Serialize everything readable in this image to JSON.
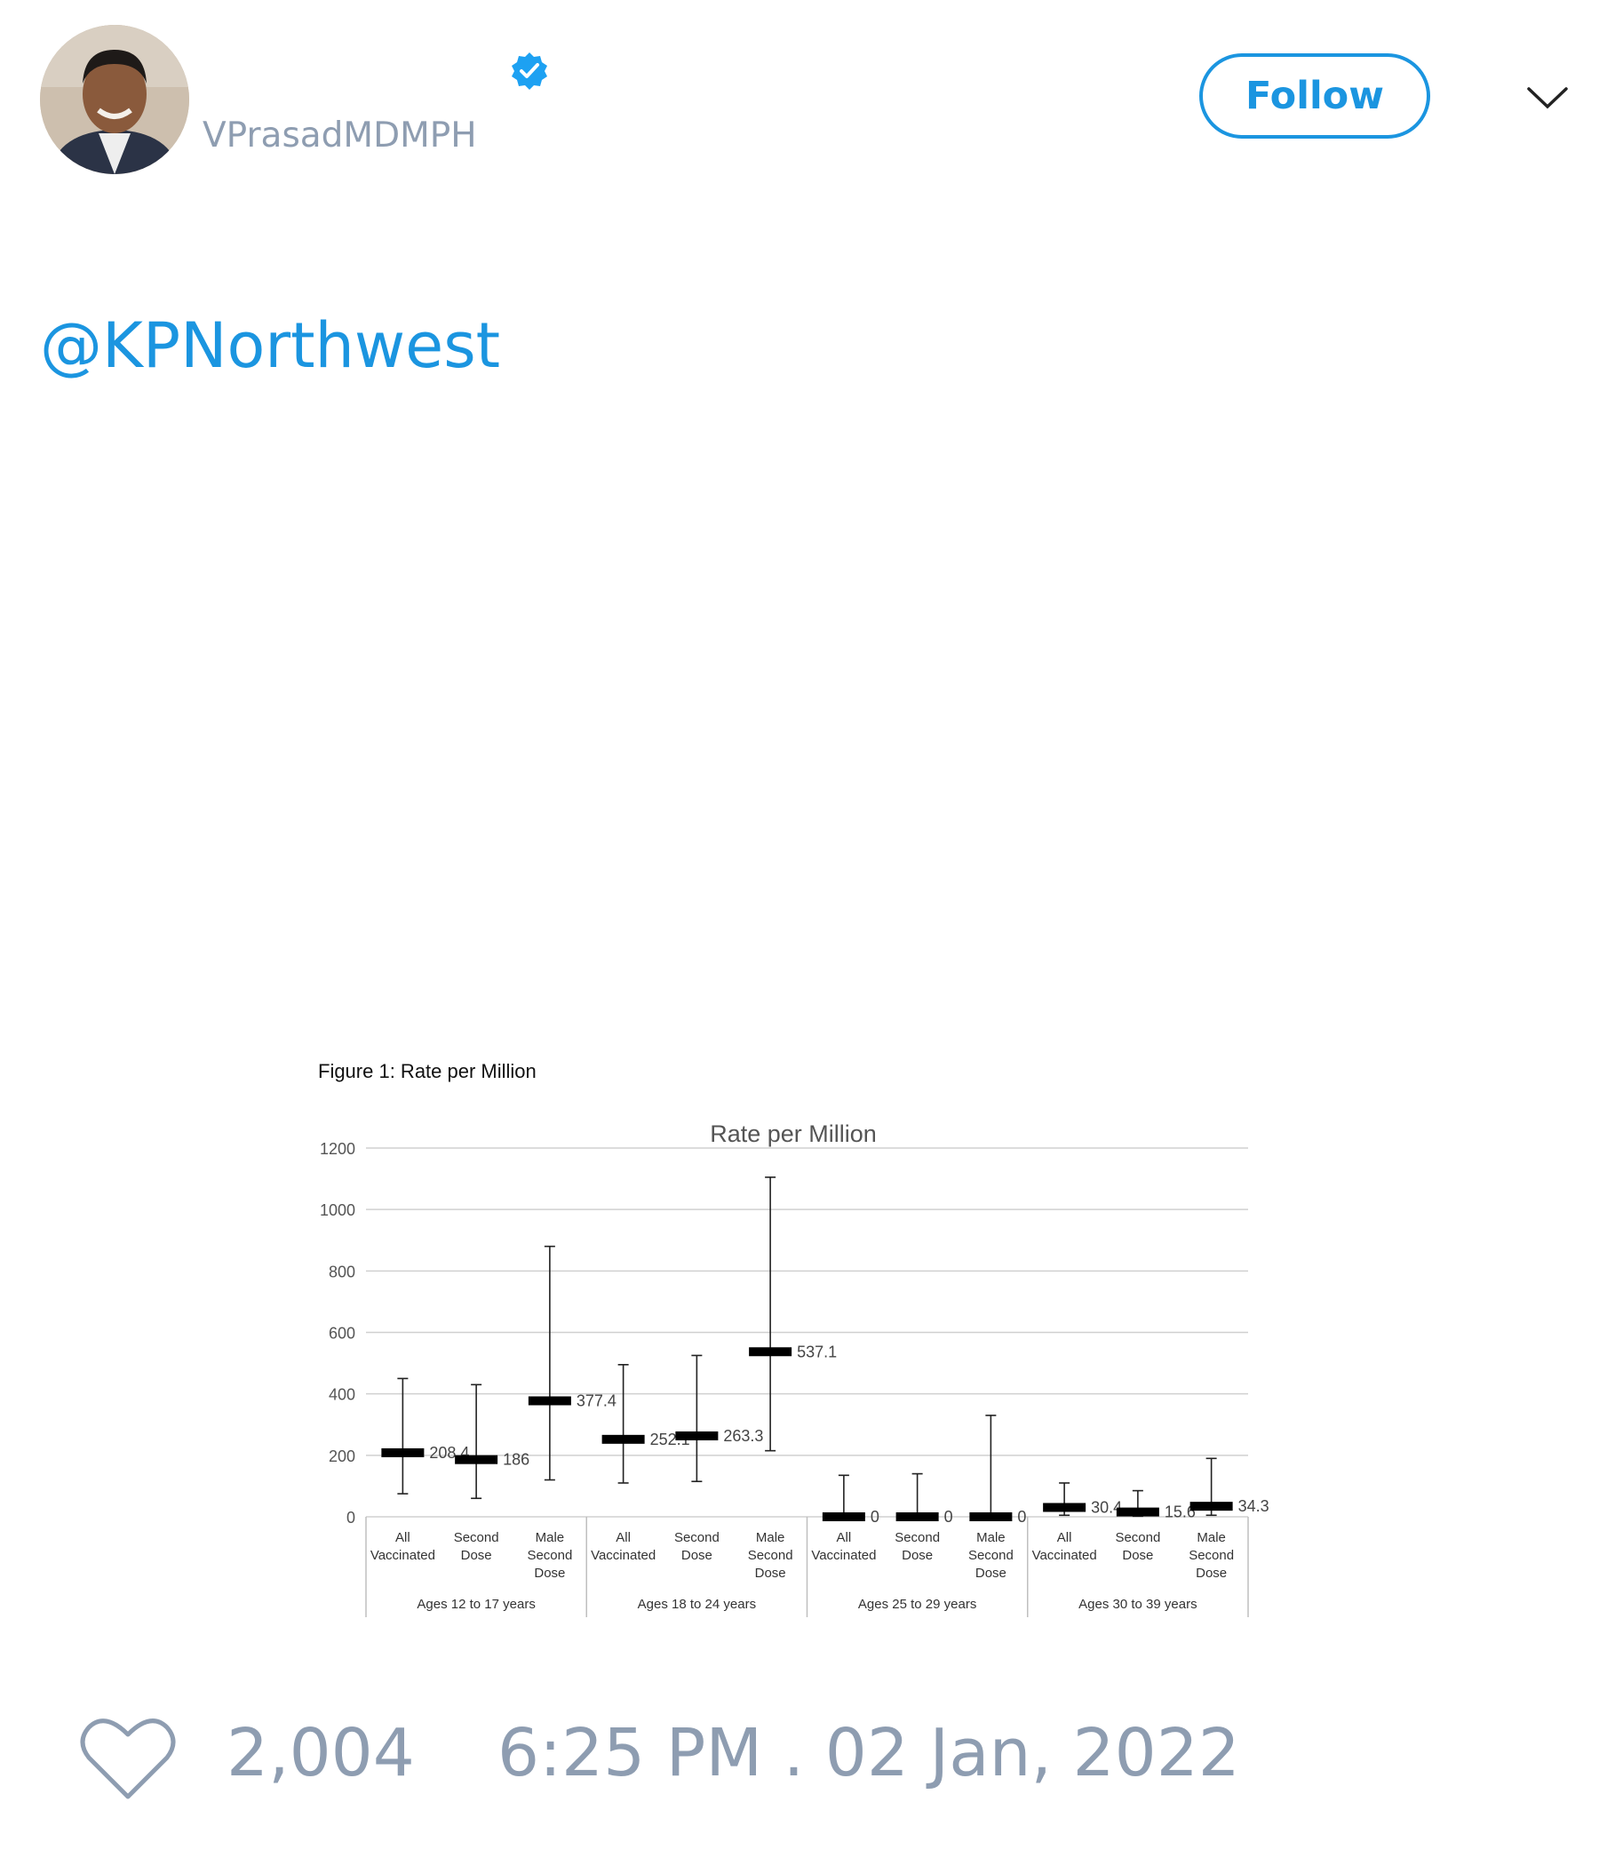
{
  "tweet": {
    "username": "VPrasadMDMPH",
    "follow_label": "Follow",
    "mention": "@KPNorthwest",
    "likes": "2,004",
    "timestamp": "6:25 PM . 02 Jan, 2022"
  },
  "colors": {
    "accent": "#1b95e0",
    "muted": "#8e9db1",
    "verified": "#1da1f2"
  },
  "icons": [
    "verified-badge-icon",
    "chevron-down-icon",
    "heart-icon"
  ],
  "chart_data": {
    "type": "scatter",
    "caption": "Figure 1: Rate per Million",
    "title": "Rate per Million",
    "ylim": [
      0,
      1200
    ],
    "yticks": [
      0,
      200,
      400,
      600,
      800,
      1000,
      1200
    ],
    "grid": true,
    "groups": [
      "Ages 12 to 17 years",
      "Ages 18 to 24 years",
      "Ages 25 to 29 years",
      "Ages 30 to 39 years"
    ],
    "category_labels": [
      [
        "All",
        "Vaccinated"
      ],
      [
        "Second",
        "Dose"
      ],
      [
        "Male",
        "Second",
        "Dose"
      ]
    ],
    "points": [
      {
        "group": 0,
        "cat": 0,
        "value": 208.4,
        "label": "208.4",
        "lower": 75,
        "upper": 450
      },
      {
        "group": 0,
        "cat": 1,
        "value": 186,
        "label": "186",
        "lower": 60,
        "upper": 430
      },
      {
        "group": 0,
        "cat": 2,
        "value": 377.4,
        "label": "377.4",
        "lower": 120,
        "upper": 880
      },
      {
        "group": 1,
        "cat": 0,
        "value": 252.1,
        "label": "252.1",
        "lower": 110,
        "upper": 495
      },
      {
        "group": 1,
        "cat": 1,
        "value": 263.3,
        "label": "263.3",
        "lower": 115,
        "upper": 525
      },
      {
        "group": 1,
        "cat": 2,
        "value": 537.1,
        "label": "537.1",
        "lower": 215,
        "upper": 1105
      },
      {
        "group": 2,
        "cat": 0,
        "value": 0,
        "label": "0",
        "lower": 0,
        "upper": 135
      },
      {
        "group": 2,
        "cat": 1,
        "value": 0,
        "label": "0",
        "lower": 0,
        "upper": 140
      },
      {
        "group": 2,
        "cat": 2,
        "value": 0,
        "label": "0",
        "lower": 0,
        "upper": 330
      },
      {
        "group": 3,
        "cat": 0,
        "value": 30.4,
        "label": "30.4",
        "lower": 5,
        "upper": 110
      },
      {
        "group": 3,
        "cat": 1,
        "value": 15.6,
        "label": "15.6",
        "lower": 2,
        "upper": 85
      },
      {
        "group": 3,
        "cat": 2,
        "value": 34.3,
        "label": "34.3",
        "lower": 5,
        "upper": 190
      }
    ]
  }
}
